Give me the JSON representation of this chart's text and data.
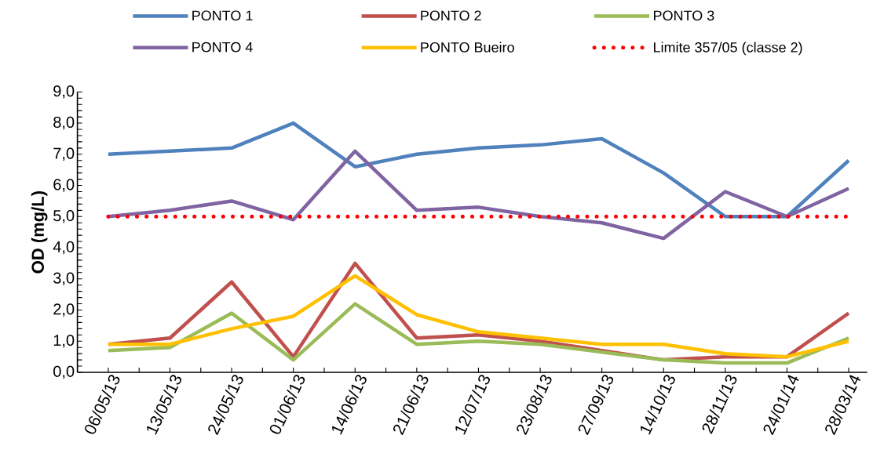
{
  "chart_data": {
    "type": "line",
    "ylabel": "OD (mg/L)",
    "categories": [
      "06/05/13",
      "13/05/13",
      "24/05/13",
      "01/06/13",
      "14/06/13",
      "21/06/13",
      "12/07/13",
      "23/08/13",
      "27/09/13",
      "14/10/13",
      "28/11/13",
      "24/01/14",
      "28/03/14"
    ],
    "series": [
      {
        "name": "PONTO 1",
        "color": "#4f81bd",
        "values": [
          7.0,
          7.1,
          7.2,
          8.0,
          6.6,
          7.0,
          7.2,
          7.3,
          7.5,
          6.4,
          5.0,
          5.0,
          6.8
        ]
      },
      {
        "name": "PONTO 2",
        "color": "#c0504d",
        "values": [
          0.9,
          1.1,
          2.9,
          0.5,
          3.5,
          1.1,
          1.2,
          1.0,
          0.7,
          0.4,
          0.5,
          0.5,
          1.9
        ]
      },
      {
        "name": "PONTO 3",
        "color": "#9bbb59",
        "values": [
          0.7,
          0.8,
          1.9,
          0.4,
          2.2,
          0.9,
          1.0,
          0.9,
          0.65,
          0.4,
          0.3,
          0.3,
          1.1
        ]
      },
      {
        "name": "PONTO 4",
        "color": "#8064a2",
        "values": [
          5.0,
          5.2,
          5.5,
          4.9,
          7.1,
          5.2,
          5.3,
          5.0,
          4.8,
          4.3,
          5.8,
          5.0,
          5.9
        ]
      },
      {
        "name": "PONTO Bueiro",
        "color": "#ffc000",
        "values": [
          0.9,
          0.9,
          1.4,
          1.8,
          3.1,
          1.85,
          1.3,
          1.1,
          0.9,
          0.9,
          0.6,
          0.5,
          1.0
        ]
      }
    ],
    "ref_lines": [
      {
        "axis": "y",
        "value": 5,
        "label": "Limite 357/05 (classe 2)",
        "color": "#ff0000",
        "line_style": "dotted"
      }
    ],
    "ylim": [
      0,
      9
    ],
    "yticks": [
      {
        "value": 0,
        "label": "0,0"
      },
      {
        "value": 1,
        "label": "1,0"
      },
      {
        "value": 2,
        "label": "2,0"
      },
      {
        "value": 3,
        "label": "3,0"
      },
      {
        "value": 4,
        "label": "4,0"
      },
      {
        "value": 5,
        "label": "5,0"
      },
      {
        "value": 6,
        "label": "6,0"
      },
      {
        "value": 7,
        "label": "7,0"
      },
      {
        "value": 8,
        "label": "8,0"
      },
      {
        "value": 9,
        "label": "9,0"
      }
    ],
    "legend": "top",
    "line_style": "solid"
  }
}
